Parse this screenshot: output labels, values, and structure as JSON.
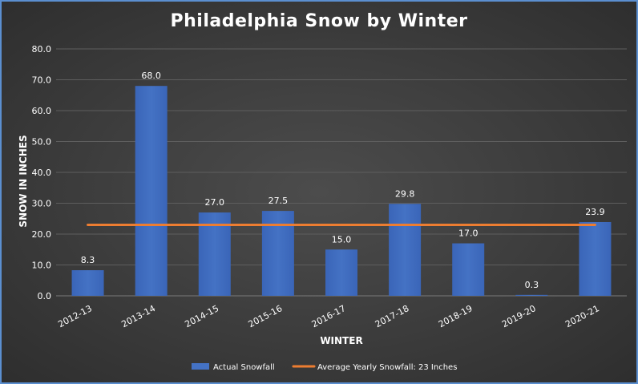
{
  "chart_data": {
    "type": "bar",
    "title": "Philadelphia Snow by Winter",
    "xlabel": "WINTER",
    "ylabel": "SNOW IN INCHES",
    "categories": [
      "2012-13",
      "2013-14",
      "2014-15",
      "2015-16",
      "2016-17",
      "2017-18",
      "2018-19",
      "2019-20",
      "2020-21"
    ],
    "series": [
      {
        "name": "Actual Snowfall",
        "type": "bar",
        "color": "#4472c4",
        "values": [
          8.3,
          68.0,
          27.0,
          27.5,
          15.0,
          29.8,
          17.0,
          0.3,
          23.9
        ],
        "labels": [
          "8.3",
          "68.0",
          "27.0",
          "27.5",
          "15.0",
          "29.8",
          "17.0",
          "0.3",
          "23.9"
        ]
      },
      {
        "name": "Average Yearly Snowfall: 23 Inches",
        "type": "line",
        "color": "#ed7d31",
        "values": [
          23,
          23,
          23,
          23,
          23,
          23,
          23,
          23,
          23
        ]
      }
    ],
    "ylim": [
      0,
      80
    ],
    "yticks": [
      "0.0",
      "10.0",
      "20.0",
      "30.0",
      "40.0",
      "50.0",
      "60.0",
      "70.0",
      "80.0"
    ],
    "grid": true,
    "legend": "bottom"
  }
}
